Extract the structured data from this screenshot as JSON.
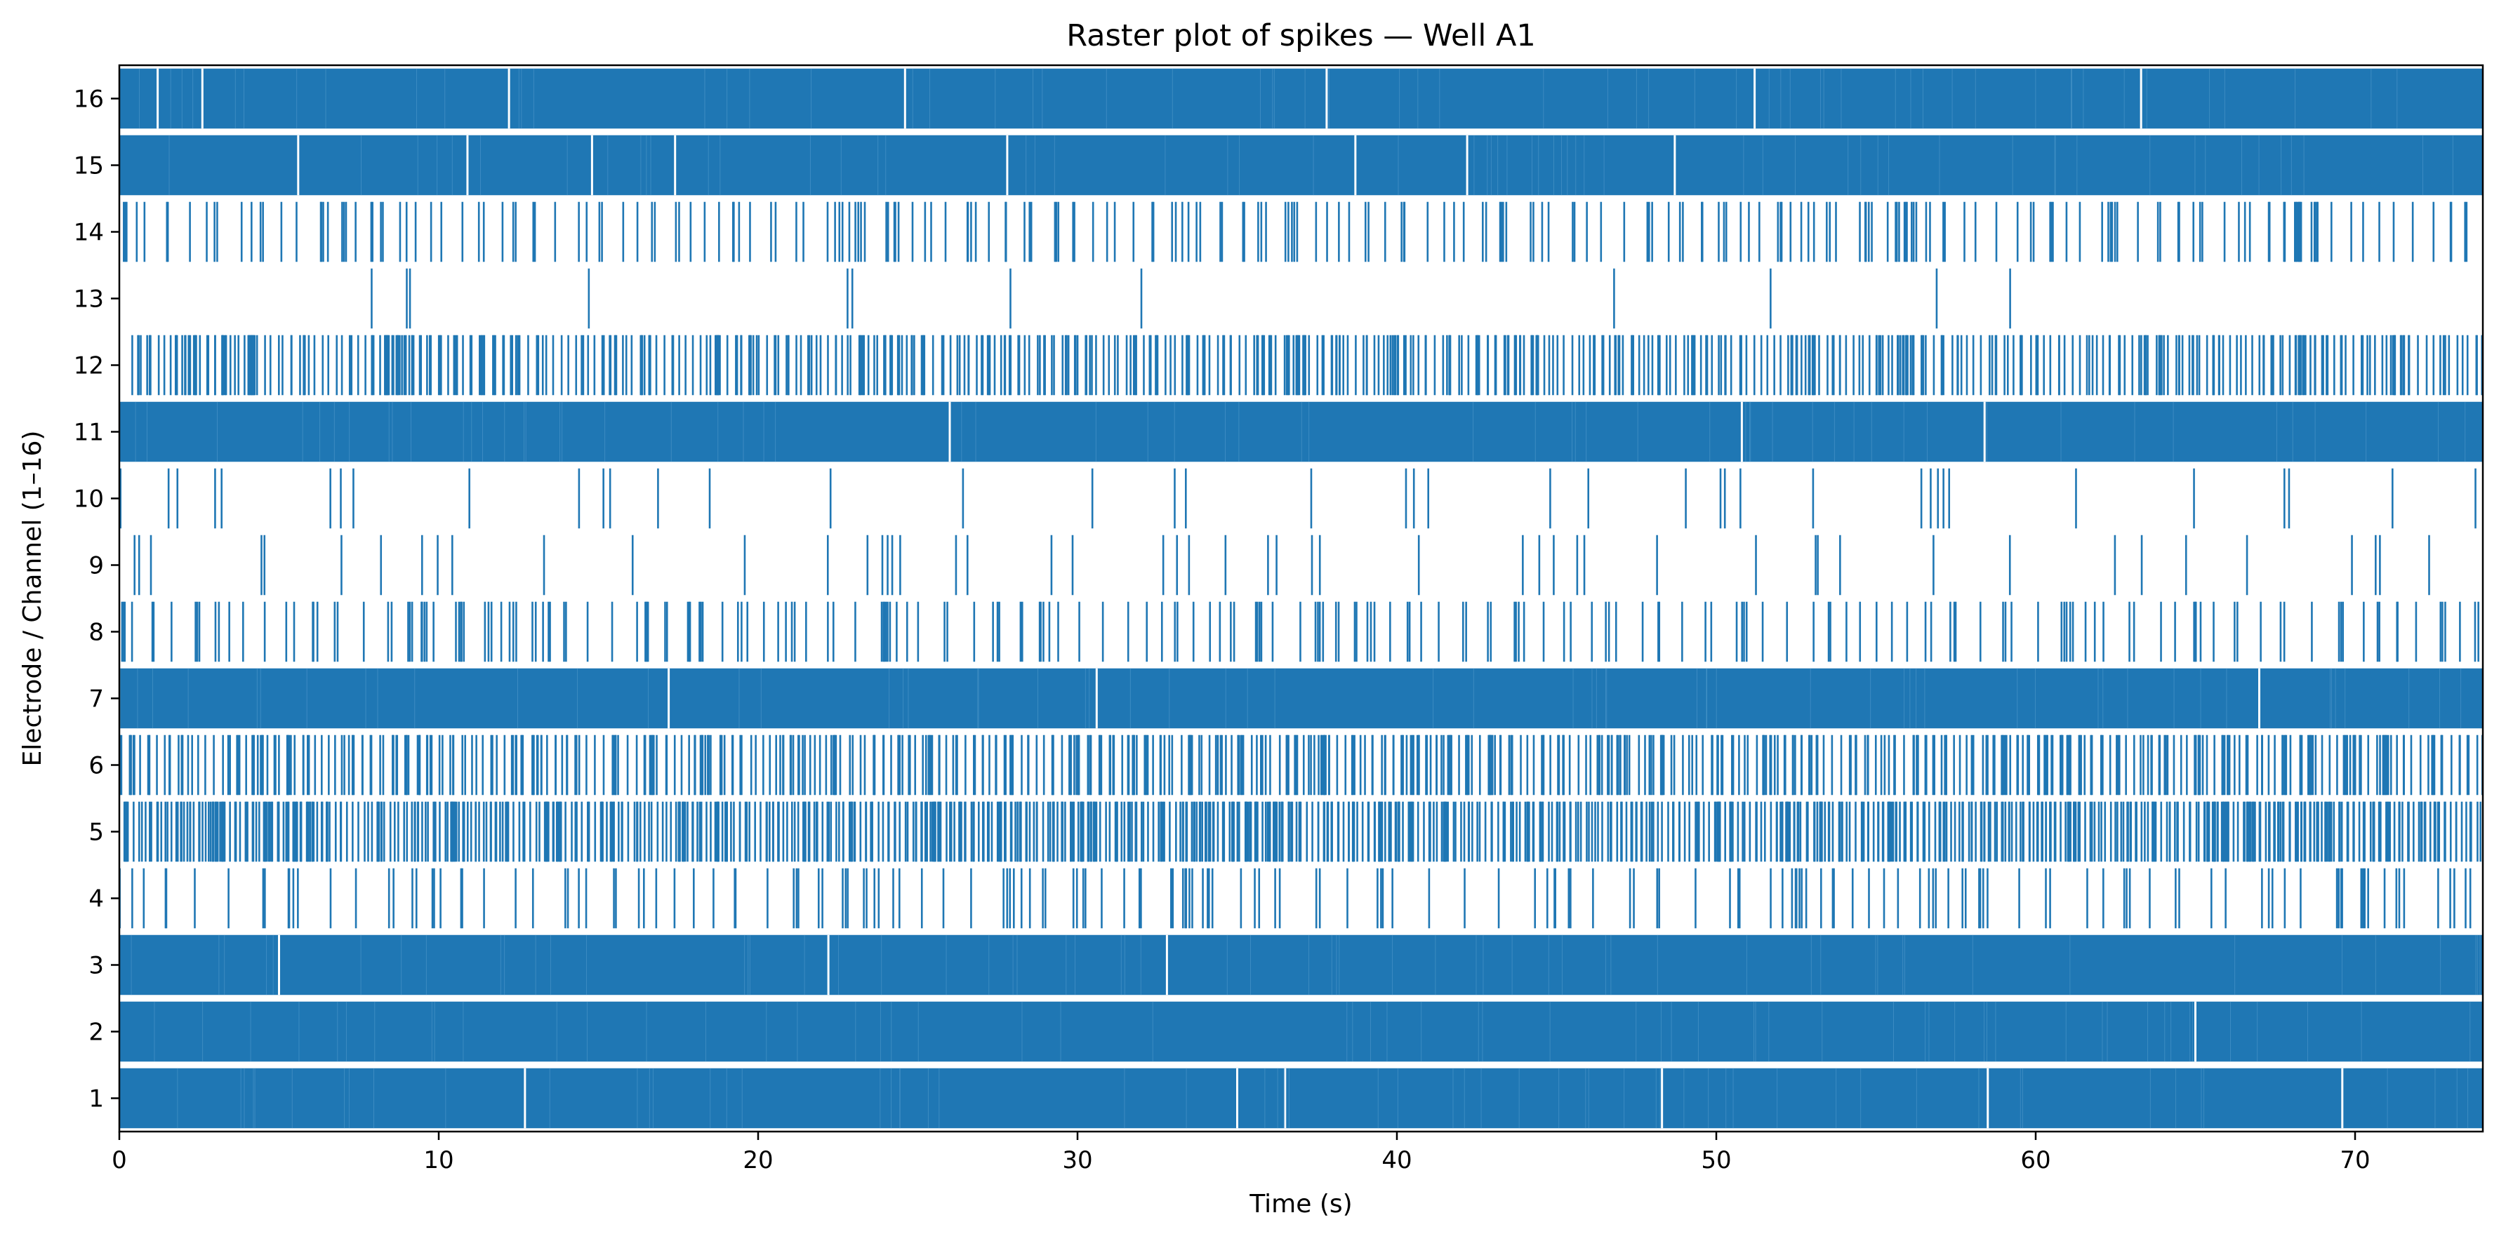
{
  "chart_data": {
    "type": "raster",
    "title": "Raster plot of spikes — Well A1",
    "xlabel": "Time (s)",
    "ylabel": "Electrode / Channel (1–16)",
    "xlim": [
      0,
      74
    ],
    "ylim": [
      0.5,
      16.5
    ],
    "x_ticks": [
      0,
      10,
      20,
      30,
      40,
      50,
      60,
      70
    ],
    "y_ticks": [
      1,
      2,
      3,
      4,
      5,
      6,
      7,
      8,
      9,
      10,
      11,
      12,
      13,
      14,
      15,
      16
    ],
    "spike_color": "#1f77b4",
    "grid": false,
    "legend": "none",
    "channels": [
      {
        "channel": 1,
        "approx_spike_count": 3500,
        "visible_gaps_s": [
          12.7,
          35.0,
          36.5,
          48.3,
          58.5,
          69.6
        ]
      },
      {
        "channel": 2,
        "approx_spike_count": 5000,
        "visible_gaps_s": [
          65.0
        ]
      },
      {
        "channel": 3,
        "approx_spike_count": 5000,
        "visible_gaps_s": [
          5.0,
          22.2,
          32.8
        ]
      },
      {
        "channel": 4,
        "approx_spike_count": 170,
        "visible_gaps_s": []
      },
      {
        "channel": 5,
        "approx_spike_count": 1000,
        "visible_gaps_s": []
      },
      {
        "channel": 6,
        "approx_spike_count": 650,
        "visible_gaps_s": []
      },
      {
        "channel": 7,
        "approx_spike_count": 5000,
        "visible_gaps_s": [
          17.2,
          30.6,
          67.0
        ]
      },
      {
        "channel": 8,
        "approx_spike_count": 230,
        "visible_gaps_s": []
      },
      {
        "channel": 9,
        "approx_spike_count": 55,
        "visible_gaps_s": []
      },
      {
        "channel": 10,
        "approx_spike_count": 45,
        "visible_gaps_s": []
      },
      {
        "channel": 11,
        "approx_spike_count": 3500,
        "visible_gaps_s": [
          26.0,
          50.8,
          58.4
        ]
      },
      {
        "channel": 12,
        "approx_spike_count": 700,
        "visible_gaps_s": []
      },
      {
        "channel": 13,
        "spike_times_s": [
          7.9,
          9.0,
          9.1,
          14.7,
          22.8,
          22.95,
          27.9,
          32.0,
          46.8,
          51.7,
          56.9,
          59.2
        ]
      },
      {
        "channel": 14,
        "approx_spike_count": 260,
        "visible_gaps_s": []
      },
      {
        "channel": 15,
        "approx_spike_count": 3500,
        "visible_gaps_s": [
          5.6,
          10.9,
          14.8,
          17.4,
          27.8,
          38.7,
          42.2,
          48.7
        ]
      },
      {
        "channel": 16,
        "approx_spike_count": 2200,
        "visible_gaps_s": [
          1.2,
          2.6,
          12.2,
          24.6,
          37.8,
          51.2,
          63.3
        ]
      }
    ]
  }
}
